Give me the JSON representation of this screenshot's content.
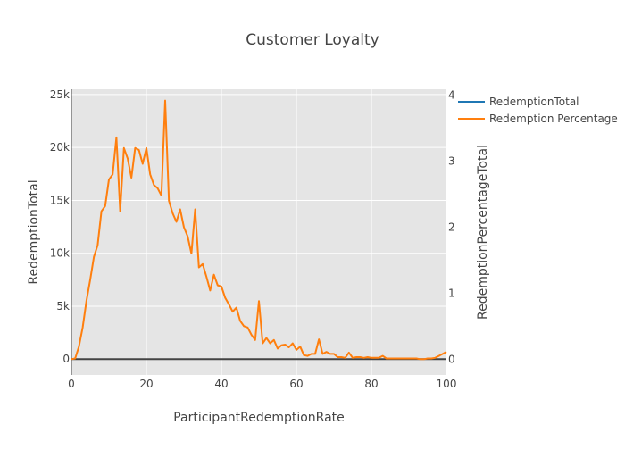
{
  "chart_data": {
    "type": "line",
    "title": "Customer Loyalty",
    "xlabel": "ParticipantRedemptionRate",
    "ylabel": "RedemptionTotal",
    "y2label": "RedemptionPercentageTotal",
    "xlim": [
      0,
      100
    ],
    "ylim": [
      -1500,
      25500
    ],
    "y2lim": [
      -0.24,
      4.09
    ],
    "x_ticks": [
      0,
      20,
      40,
      60,
      80,
      100
    ],
    "x_tick_labels": [
      "0",
      "20",
      "40",
      "60",
      "80",
      "100"
    ],
    "y_ticks": [
      0,
      5000,
      10000,
      15000,
      20000,
      25000
    ],
    "y_tick_labels": [
      "0",
      "5k",
      "10k",
      "15k",
      "20k",
      "25k"
    ],
    "y2_ticks": [
      0,
      1,
      2,
      3,
      4
    ],
    "y2_tick_labels": [
      "0",
      "1",
      "2",
      "3",
      "4"
    ],
    "grid": true,
    "legend_position": "top-right",
    "x": [
      0,
      1,
      2,
      3,
      4,
      5,
      6,
      7,
      8,
      9,
      10,
      11,
      12,
      13,
      14,
      15,
      16,
      17,
      18,
      19,
      20,
      21,
      22,
      23,
      24,
      25,
      26,
      27,
      28,
      29,
      30,
      31,
      32,
      33,
      34,
      35,
      36,
      37,
      38,
      39,
      40,
      41,
      42,
      43,
      44,
      45,
      46,
      47,
      48,
      49,
      50,
      51,
      52,
      53,
      54,
      55,
      56,
      57,
      58,
      59,
      60,
      61,
      62,
      63,
      64,
      65,
      66,
      67,
      68,
      69,
      70,
      71,
      72,
      73,
      74,
      75,
      76,
      77,
      78,
      79,
      80,
      81,
      82,
      83,
      84,
      85,
      86,
      87,
      88,
      89,
      90,
      91,
      92,
      93,
      94,
      95,
      96,
      97,
      98,
      99,
      100
    ],
    "series": [
      {
        "name": "RedemptionTotal",
        "color": "#1f77b4",
        "axis": "y",
        "values": [
          0,
          50,
          1200,
          3000,
          5500,
          7500,
          9700,
          10800,
          14000,
          14500,
          17000,
          17500,
          21000,
          14000,
          20000,
          19000,
          17200,
          20000,
          19800,
          18500,
          20000,
          17500,
          16500,
          16200,
          15500,
          24500,
          15000,
          13800,
          13000,
          14200,
          12500,
          11600,
          10000,
          14200,
          8700,
          9000,
          7800,
          6500,
          8000,
          7000,
          6900,
          5800,
          5200,
          4500,
          4900,
          3600,
          3100,
          3000,
          2300,
          1800,
          5500,
          1500,
          2000,
          1500,
          1800,
          1000,
          1300,
          1400,
          1100,
          1500,
          900,
          1200,
          400,
          300,
          500,
          500,
          1900,
          500,
          700,
          500,
          500,
          200,
          200,
          100,
          600,
          100,
          200,
          200,
          100,
          200,
          100,
          150,
          100,
          300,
          50,
          50,
          50,
          50,
          50,
          50,
          50,
          50,
          50,
          0,
          0,
          50,
          50,
          150,
          300,
          500,
          700
        ],
        "visible": false
      },
      {
        "name": "Redemption Percentage",
        "color": "#ff7f0e",
        "axis": "y2",
        "values": [
          0,
          0.01,
          0.19,
          0.48,
          0.88,
          1.2,
          1.55,
          1.73,
          2.24,
          2.32,
          2.72,
          2.8,
          3.36,
          2.24,
          3.2,
          3.04,
          2.75,
          3.2,
          3.17,
          2.96,
          3.2,
          2.8,
          2.64,
          2.59,
          2.48,
          3.92,
          2.4,
          2.21,
          2.08,
          2.27,
          2.0,
          1.86,
          1.6,
          2.27,
          1.39,
          1.44,
          1.25,
          1.04,
          1.28,
          1.12,
          1.1,
          0.93,
          0.83,
          0.72,
          0.78,
          0.58,
          0.5,
          0.48,
          0.37,
          0.29,
          0.88,
          0.24,
          0.32,
          0.24,
          0.29,
          0.16,
          0.21,
          0.22,
          0.18,
          0.24,
          0.14,
          0.19,
          0.06,
          0.05,
          0.08,
          0.08,
          0.3,
          0.08,
          0.11,
          0.08,
          0.08,
          0.03,
          0.03,
          0.02,
          0.1,
          0.02,
          0.03,
          0.03,
          0.02,
          0.03,
          0.02,
          0.02,
          0.02,
          0.05,
          0.01,
          0.01,
          0.01,
          0.01,
          0.01,
          0.01,
          0.01,
          0.01,
          0.01,
          0,
          0,
          0.01,
          0.01,
          0.02,
          0.05,
          0.08,
          0.11
        ]
      }
    ]
  }
}
